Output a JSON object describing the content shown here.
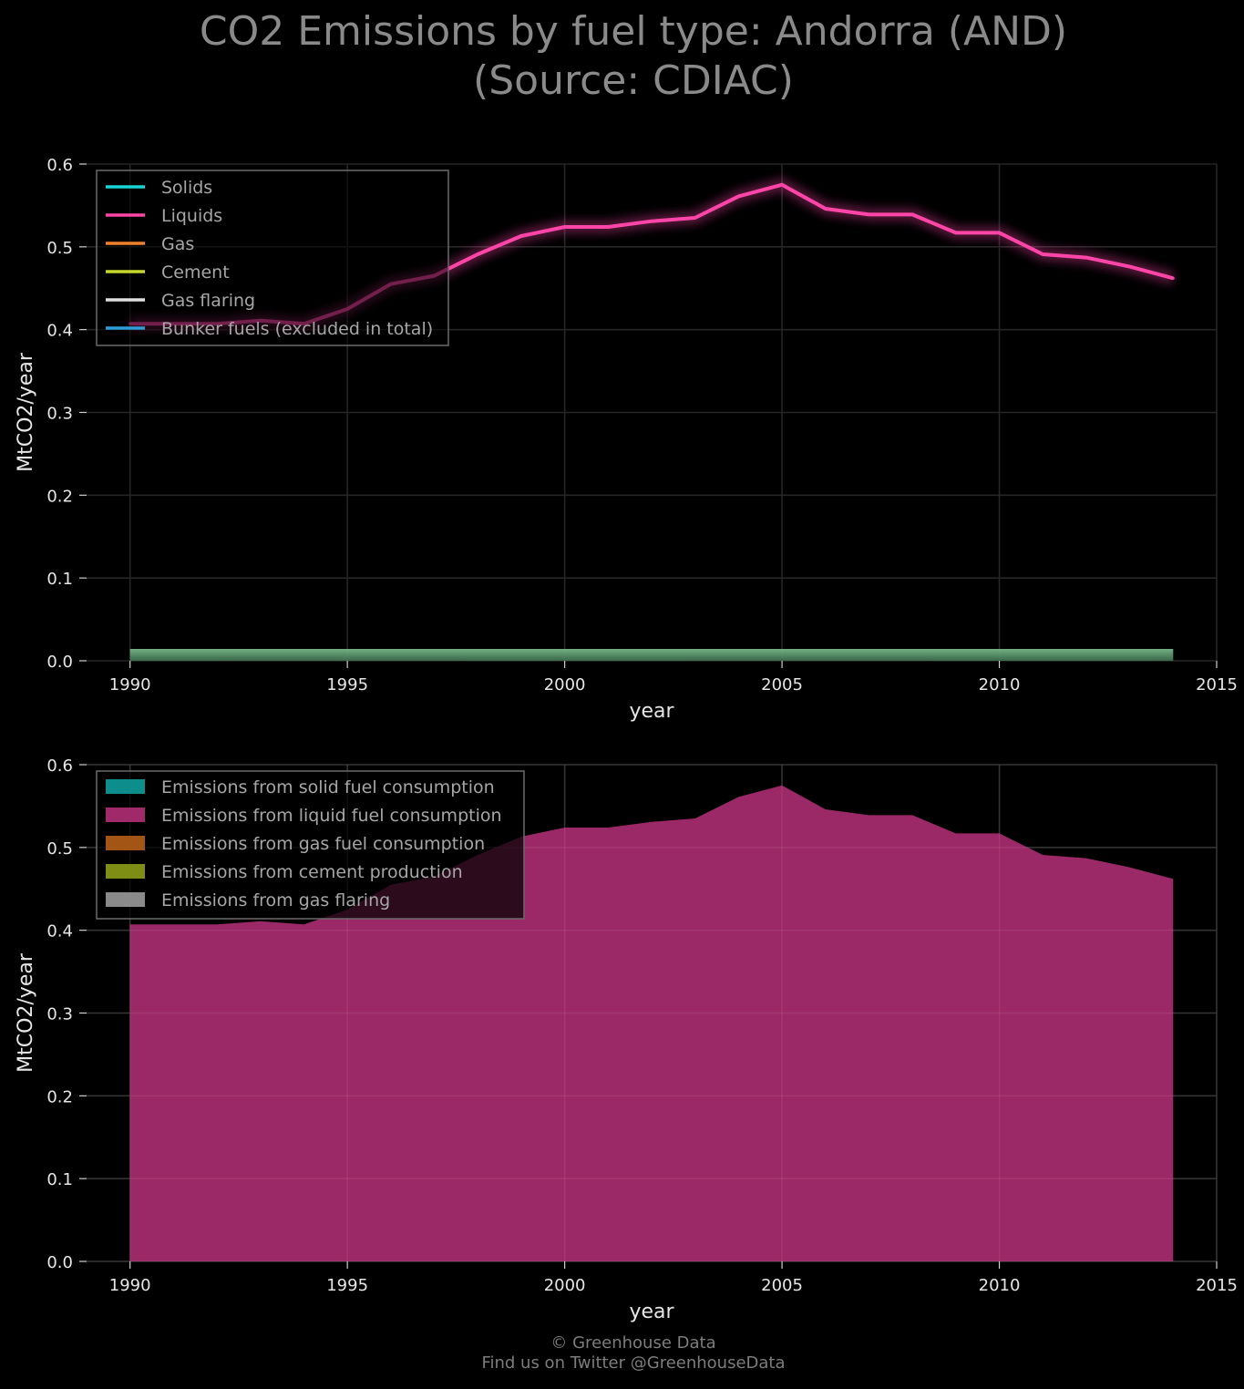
{
  "title": {
    "line1": "CO2 Emissions by fuel type: Andorra (AND)",
    "line2": "(Source: CDIAC)"
  },
  "footer": {
    "line1": "© Greenhouse Data",
    "line2": "Find us on Twitter @GreenhouseData"
  },
  "colors": {
    "solids": "#17d4d4",
    "liquids": "#ff45a8",
    "gas": "#f0802a",
    "cement": "#c6d62a",
    "flaring": "#e0e0e0",
    "bunker": "#2d9ed8",
    "area_solid": "#0e8d8d",
    "area_liquid": "#a0296a",
    "area_gas": "#a35515",
    "area_cement": "#7e8d14",
    "area_flaring": "#8a8a8a",
    "bottom_band": "#6aa87a"
  },
  "chart_data": [
    {
      "type": "line",
      "xlabel": "year",
      "ylabel": "MtCO2/year",
      "xlim": [
        1989,
        2015
      ],
      "ylim": [
        0,
        0.6
      ],
      "xticks": [
        "1990",
        "1995",
        "2000",
        "2005",
        "2010",
        "2015"
      ],
      "yticks": [
        "0.0",
        "0.1",
        "0.2",
        "0.3",
        "0.4",
        "0.5",
        "0.6"
      ],
      "grid": true,
      "legend_position": "top-left",
      "x": [
        1990,
        1991,
        1992,
        1993,
        1994,
        1995,
        1996,
        1997,
        1998,
        1999,
        2000,
        2001,
        2002,
        2003,
        2004,
        2005,
        2006,
        2007,
        2008,
        2009,
        2010,
        2011,
        2012,
        2013,
        2014
      ],
      "series": [
        {
          "name": "Solids",
          "values": [
            0,
            0,
            0,
            0,
            0,
            0,
            0,
            0,
            0,
            0,
            0,
            0,
            0,
            0,
            0,
            0,
            0,
            0,
            0,
            0,
            0,
            0,
            0,
            0,
            0
          ]
        },
        {
          "name": "Liquids",
          "values": [
            0.407,
            0.407,
            0.407,
            0.411,
            0.407,
            0.425,
            0.455,
            0.465,
            0.491,
            0.513,
            0.524,
            0.524,
            0.531,
            0.535,
            0.561,
            0.575,
            0.546,
            0.539,
            0.539,
            0.517,
            0.517,
            0.491,
            0.487,
            0.476,
            0.462
          ]
        },
        {
          "name": "Gas",
          "values": [
            0,
            0,
            0,
            0,
            0,
            0,
            0,
            0,
            0,
            0,
            0,
            0,
            0,
            0,
            0,
            0,
            0,
            0,
            0,
            0,
            0,
            0,
            0,
            0,
            0
          ]
        },
        {
          "name": "Cement",
          "values": [
            0,
            0,
            0,
            0,
            0,
            0,
            0,
            0,
            0,
            0,
            0,
            0,
            0,
            0,
            0,
            0,
            0,
            0,
            0,
            0,
            0,
            0,
            0,
            0,
            0
          ]
        },
        {
          "name": "Gas flaring",
          "values": [
            0,
            0,
            0,
            0,
            0,
            0,
            0,
            0,
            0,
            0,
            0,
            0,
            0,
            0,
            0,
            0,
            0,
            0,
            0,
            0,
            0,
            0,
            0,
            0,
            0
          ]
        },
        {
          "name": "Bunker fuels (excluded in total)",
          "values": [
            0,
            0,
            0,
            0,
            0,
            0,
            0,
            0,
            0,
            0,
            0,
            0,
            0,
            0,
            0,
            0,
            0,
            0,
            0,
            0,
            0,
            0,
            0,
            0,
            0
          ]
        }
      ]
    },
    {
      "type": "area",
      "xlabel": "year",
      "ylabel": "MtCO2/year",
      "xlim": [
        1989,
        2015
      ],
      "ylim": [
        0,
        0.6
      ],
      "xticks": [
        "1990",
        "1995",
        "2000",
        "2005",
        "2010",
        "2015"
      ],
      "yticks": [
        "0.0",
        "0.1",
        "0.2",
        "0.3",
        "0.4",
        "0.5",
        "0.6"
      ],
      "grid": true,
      "stacked": true,
      "legend_position": "top-left",
      "x": [
        1990,
        1991,
        1992,
        1993,
        1994,
        1995,
        1996,
        1997,
        1998,
        1999,
        2000,
        2001,
        2002,
        2003,
        2004,
        2005,
        2006,
        2007,
        2008,
        2009,
        2010,
        2011,
        2012,
        2013,
        2014
      ],
      "series": [
        {
          "name": "Emissions from solid fuel consumption",
          "values": [
            0,
            0,
            0,
            0,
            0,
            0,
            0,
            0,
            0,
            0,
            0,
            0,
            0,
            0,
            0,
            0,
            0,
            0,
            0,
            0,
            0,
            0,
            0,
            0,
            0
          ]
        },
        {
          "name": "Emissions from liquid fuel consumption",
          "values": [
            0.407,
            0.407,
            0.407,
            0.411,
            0.407,
            0.425,
            0.455,
            0.465,
            0.491,
            0.513,
            0.524,
            0.524,
            0.531,
            0.535,
            0.561,
            0.575,
            0.546,
            0.539,
            0.539,
            0.517,
            0.517,
            0.491,
            0.487,
            0.476,
            0.462
          ]
        },
        {
          "name": "Emissions from gas fuel consumption",
          "values": [
            0,
            0,
            0,
            0,
            0,
            0,
            0,
            0,
            0,
            0,
            0,
            0,
            0,
            0,
            0,
            0,
            0,
            0,
            0,
            0,
            0,
            0,
            0,
            0,
            0
          ]
        },
        {
          "name": "Emissions from cement production",
          "values": [
            0,
            0,
            0,
            0,
            0,
            0,
            0,
            0,
            0,
            0,
            0,
            0,
            0,
            0,
            0,
            0,
            0,
            0,
            0,
            0,
            0,
            0,
            0,
            0,
            0
          ]
        },
        {
          "name": "Emissions from gas flaring",
          "values": [
            0,
            0,
            0,
            0,
            0,
            0,
            0,
            0,
            0,
            0,
            0,
            0,
            0,
            0,
            0,
            0,
            0,
            0,
            0,
            0,
            0,
            0,
            0,
            0,
            0
          ]
        }
      ]
    }
  ]
}
